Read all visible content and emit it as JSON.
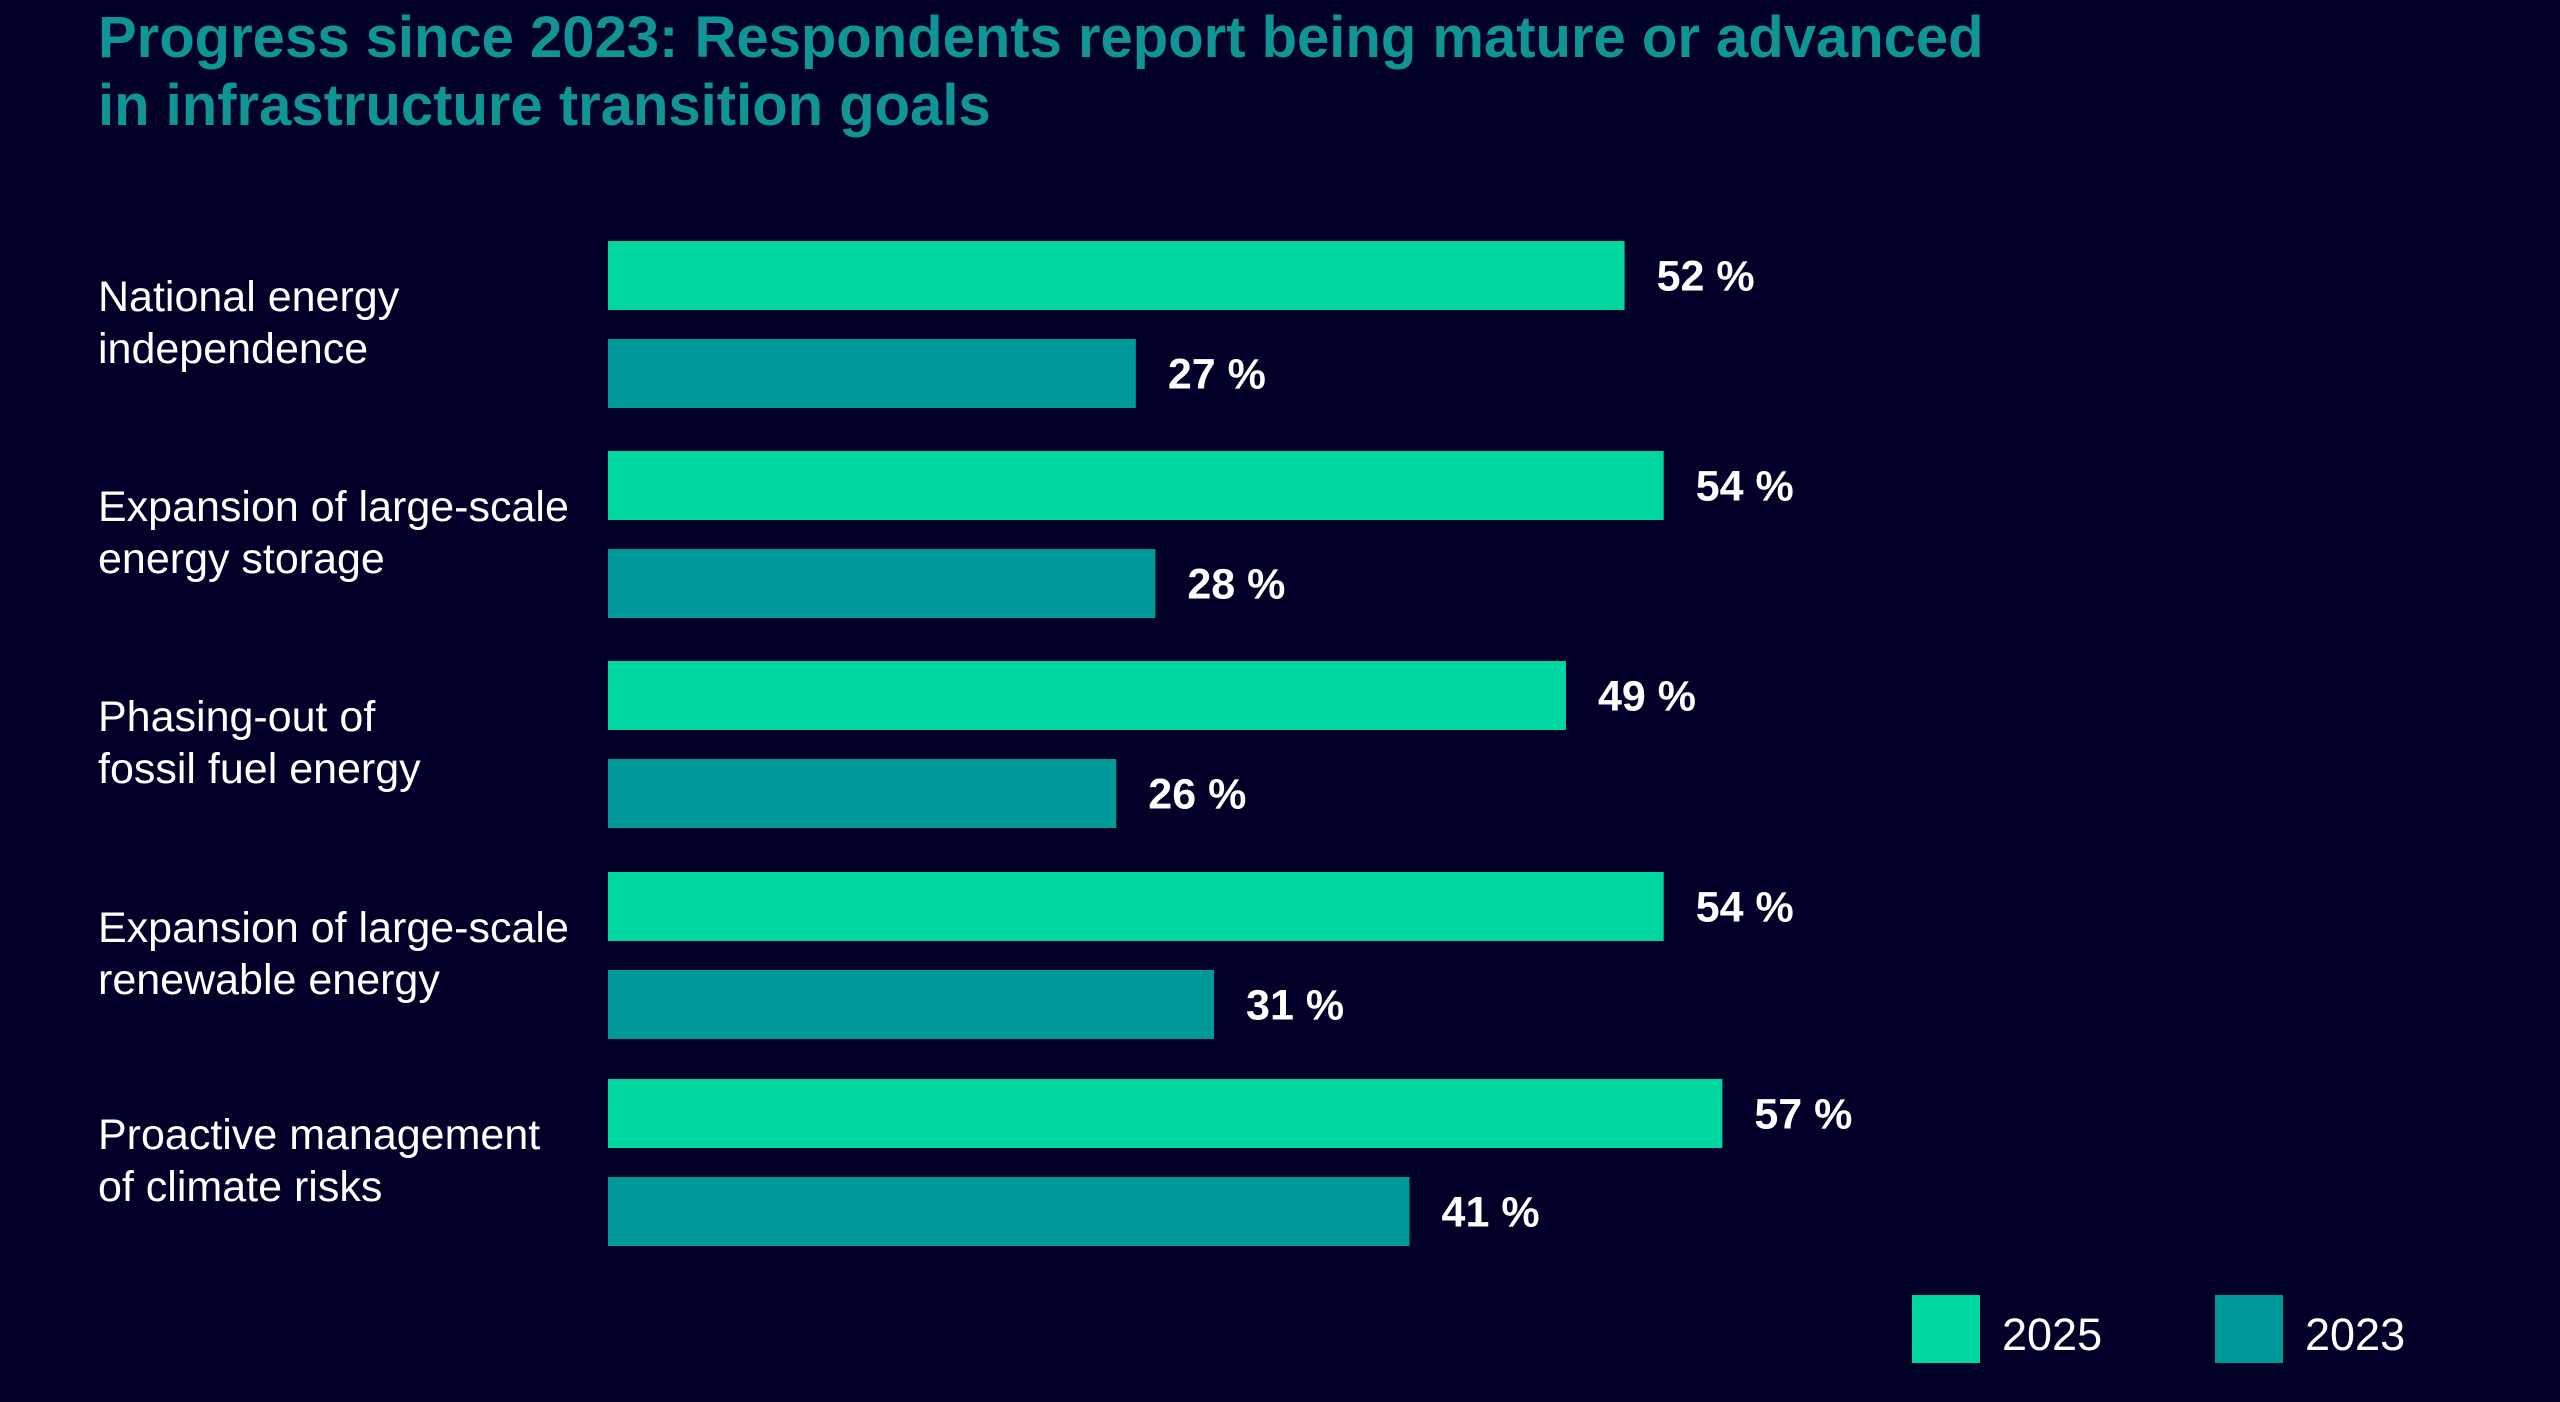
{
  "chart_data": {
    "type": "bar",
    "orientation": "horizontal",
    "title_lines": [
      "Progress since 2023: Respondents report being mature or advanced",
      "in infrastructure transition goals"
    ],
    "categories": [
      [
        "National energy",
        "independence"
      ],
      [
        "Expansion of large-scale",
        "energy storage"
      ],
      [
        "Phasing-out of",
        "fossil fuel energy"
      ],
      [
        "Expansion of large-scale",
        "renewable energy"
      ],
      [
        "Proactive management",
        "of climate risks"
      ]
    ],
    "series": [
      {
        "name": "2025",
        "color": "#00d7a0",
        "values": [
          52,
          54,
          49,
          54,
          57
        ],
        "labels": [
          "52 %",
          "54 %",
          "49 %",
          "54 %",
          "57 %"
        ]
      },
      {
        "name": "2023",
        "color": "#009999",
        "values": [
          27,
          28,
          26,
          31,
          41
        ],
        "labels": [
          "27 %",
          "28 %",
          "26 %",
          "31 %",
          "41 %"
        ]
      }
    ],
    "xlim": [
      0,
      100
    ],
    "grid": false,
    "legend_position": "bottom-right"
  }
}
